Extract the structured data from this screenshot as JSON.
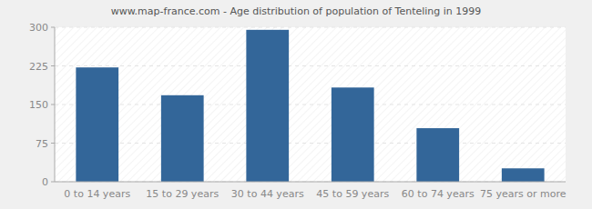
{
  "chart_data": {
    "type": "bar",
    "title": "www.map-france.com - Age distribution of population of Tenteling in 1999",
    "categories": [
      "0 to 14 years",
      "15 to 29 years",
      "30 to 44 years",
      "45 to 59 years",
      "60 to 74 years",
      "75 years or more"
    ],
    "values": [
      222,
      168,
      295,
      183,
      104,
      26
    ],
    "color": "#336699",
    "ylim": [
      0,
      300
    ],
    "yticks": [
      0,
      75,
      150,
      225,
      300
    ],
    "grid": true
  }
}
